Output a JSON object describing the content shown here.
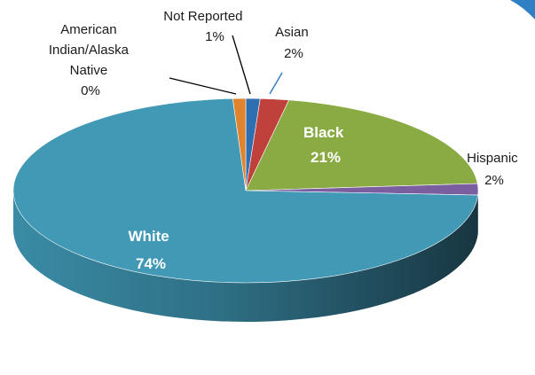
{
  "chart_data": {
    "type": "pie",
    "style": "3d",
    "title": "",
    "slices": [
      {
        "key": "not_reported",
        "label": "Not Reported",
        "pct_label": "1%",
        "value": 1,
        "color": "#2d6fb1"
      },
      {
        "key": "asian",
        "label": "Asian",
        "pct_label": "2%",
        "value": 2,
        "color": "#c0413b"
      },
      {
        "key": "black",
        "label": "Black",
        "pct_label": "21%",
        "value": 21,
        "color": "#8aab43"
      },
      {
        "key": "hispanic",
        "label": "Hispanic",
        "pct_label": "2%",
        "value": 2,
        "color": "#7b5ea0"
      },
      {
        "key": "white",
        "label": "White",
        "pct_label": "74%",
        "value": 74,
        "color": "#4199b5"
      },
      {
        "key": "american_indian",
        "label_lines": [
          "American",
          "Indian/Alaska",
          "Native"
        ],
        "pct_label": "0%",
        "value": 0,
        "color": "#e0832e"
      }
    ],
    "legend": "none",
    "data_labels": "category name and percentage"
  }
}
